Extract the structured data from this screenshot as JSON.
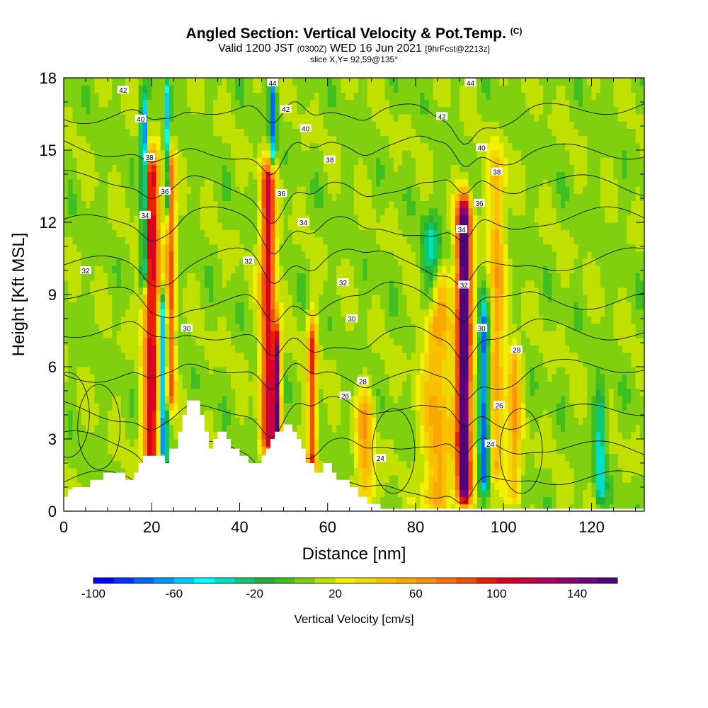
{
  "chart_data": {
    "type": "heatmap",
    "title": "Angled Section: Vertical Velocity & Pot.Temp.",
    "title_suffix": "(C)",
    "subtitle": {
      "part1": "Valid 1200 JST",
      "part2": "(0300Z)",
      "part3": "WED 16 Jun 2021",
      "part4": "[9hrFcst@2213z]"
    },
    "slice_label": "slice X,Y= 92,59@135°",
    "xlabel": "Distance [nm]",
    "ylabel": "Height [Kft MSL]",
    "xlim": [
      0,
      132
    ],
    "ylim": [
      0,
      18
    ],
    "x_ticks": [
      "0",
      "20",
      "40",
      "60",
      "80",
      "100",
      "120"
    ],
    "y_ticks": [
      "0",
      "3",
      "6",
      "9",
      "12",
      "15",
      "18"
    ],
    "colorbar": {
      "title": "Vertical Velocity [cm/s]",
      "min": -100,
      "max": 160,
      "step": 10,
      "labels": [
        "-100",
        "-60",
        "-20",
        "20",
        "60",
        "100",
        "140"
      ],
      "colors": [
        "#0000ff",
        "#0032ff",
        "#0064ff",
        "#0096ff",
        "#00ccff",
        "#00ffff",
        "#00e0c8",
        "#10c870",
        "#20b040",
        "#40c020",
        "#80d010",
        "#c0e000",
        "#f0f000",
        "#f0d800",
        "#f8c000",
        "#f8a800",
        "#f89010",
        "#f87010",
        "#f05000",
        "#e82000",
        "#d80020",
        "#c80040",
        "#b00060",
        "#900070",
        "#700080",
        "#500080"
      ]
    },
    "terrain": [
      [
        0,
        0.6
      ],
      [
        1,
        0.6
      ],
      [
        1,
        0.9
      ],
      [
        2,
        0.9
      ],
      [
        2,
        1.0
      ],
      [
        6,
        1.0
      ],
      [
        6,
        1.3
      ],
      [
        9,
        1.3
      ],
      [
        9,
        1.6
      ],
      [
        14,
        1.6
      ],
      [
        14,
        1.3
      ],
      [
        16,
        1.3
      ],
      [
        16,
        1.6
      ],
      [
        17,
        1.6
      ],
      [
        17,
        2.0
      ],
      [
        18,
        2.0
      ],
      [
        18,
        2.3
      ],
      [
        23,
        2.3
      ],
      [
        23,
        2.0
      ],
      [
        24,
        2.0
      ],
      [
        24,
        2.6
      ],
      [
        26,
        2.6
      ],
      [
        26,
        3.3
      ],
      [
        27,
        3.3
      ],
      [
        27,
        4.0
      ],
      [
        28,
        4.0
      ],
      [
        28,
        4.6
      ],
      [
        31,
        4.6
      ],
      [
        31,
        4.0
      ],
      [
        32,
        4.0
      ],
      [
        32,
        3.3
      ],
      [
        33,
        3.3
      ],
      [
        33,
        2.6
      ],
      [
        34,
        2.6
      ],
      [
        34,
        3.0
      ],
      [
        35,
        3.0
      ],
      [
        35,
        3.3
      ],
      [
        37,
        3.3
      ],
      [
        37,
        3.0
      ],
      [
        38,
        3.0
      ],
      [
        38,
        2.6
      ],
      [
        40,
        2.6
      ],
      [
        40,
        2.3
      ],
      [
        42,
        2.3
      ],
      [
        42,
        2.0
      ],
      [
        45,
        2.0
      ],
      [
        45,
        2.3
      ],
      [
        46,
        2.3
      ],
      [
        46,
        2.6
      ],
      [
        47,
        2.6
      ],
      [
        47,
        3.0
      ],
      [
        48,
        3.0
      ],
      [
        48,
        3.3
      ],
      [
        50,
        3.3
      ],
      [
        50,
        3.6
      ],
      [
        52,
        3.6
      ],
      [
        52,
        3.3
      ],
      [
        53,
        3.3
      ],
      [
        53,
        3.0
      ],
      [
        54,
        3.0
      ],
      [
        54,
        2.6
      ],
      [
        55,
        2.6
      ],
      [
        55,
        2.0
      ],
      [
        57,
        2.0
      ],
      [
        57,
        1.6
      ],
      [
        59,
        1.6
      ],
      [
        59,
        2.0
      ],
      [
        61,
        2.0
      ],
      [
        61,
        1.6
      ],
      [
        62,
        1.6
      ],
      [
        62,
        1.3
      ],
      [
        65,
        1.3
      ],
      [
        65,
        1.0
      ],
      [
        67,
        1.0
      ],
      [
        67,
        0.6
      ],
      [
        69,
        0.6
      ],
      [
        69,
        0.3
      ],
      [
        72,
        0.3
      ],
      [
        72,
        0.1
      ],
      [
        132,
        0.1
      ]
    ],
    "updrafts": [
      {
        "x": 20,
        "w": 1.9,
        "y0": 0,
        "y1": 13.8,
        "peak": 1.0
      },
      {
        "x": 24.3,
        "w": 1.0,
        "y0": 5,
        "y1": 14,
        "peak": 0.75
      },
      {
        "x": 46.5,
        "w": 1.7,
        "y0": 3,
        "y1": 13.5,
        "peak": 1.0
      },
      {
        "x": 48.5,
        "w": 0.8,
        "y0": 2.5,
        "y1": 6.5,
        "peak": 1.15
      },
      {
        "x": 56.5,
        "w": 1.0,
        "y0": 2,
        "y1": 7,
        "peak": 0.8
      },
      {
        "x": 91,
        "w": 1.6,
        "y0": 1,
        "y1": 12,
        "peak": 1.6
      },
      {
        "x": 85,
        "w": 3.5,
        "y0": 0.5,
        "y1": 9,
        "peak": 0.45
      },
      {
        "x": 98.5,
        "w": 1.8,
        "y0": 2,
        "y1": 14,
        "peak": 0.45
      },
      {
        "x": 102.5,
        "w": 1.5,
        "y0": 1,
        "y1": 6,
        "peak": 0.45
      },
      {
        "x": 68.5,
        "w": 2.0,
        "y0": 1,
        "y1": 4,
        "peak": 0.45
      }
    ],
    "downdrafts": [
      {
        "x": 18.2,
        "w": 0.7,
        "y0": 10,
        "y1": 16,
        "peak": -1.0
      },
      {
        "x": 22.5,
        "w": 1.0,
        "y0": 2,
        "y1": 8,
        "peak": -0.8
      },
      {
        "x": 23.5,
        "w": 0.7,
        "y0": 13,
        "y1": 17,
        "peak": -0.6
      },
      {
        "x": 47.5,
        "w": 0.7,
        "y0": 15,
        "y1": 18,
        "peak": -0.75
      },
      {
        "x": 95.5,
        "w": 1.0,
        "y0": 1.5,
        "y1": 7.5,
        "peak": -0.85
      },
      {
        "x": 83.5,
        "w": 2.0,
        "y0": 9,
        "y1": 11,
        "peak": -0.45
      },
      {
        "x": 122,
        "w": 1.2,
        "y0": 1,
        "y1": 4,
        "peak": -0.45
      }
    ],
    "isentropes": [
      "24",
      "26",
      "28",
      "30",
      "32",
      "34",
      "36",
      "38",
      "40",
      "42",
      "44"
    ],
    "contour_labels": [
      {
        "text": "42",
        "x": 13.5,
        "y": 17.5
      },
      {
        "text": "40",
        "x": 17.5,
        "y": 16.3
      },
      {
        "text": "38",
        "x": 19.5,
        "y": 14.7
      },
      {
        "text": "36",
        "x": 23,
        "y": 13.3
      },
      {
        "text": "34",
        "x": 18.5,
        "y": 12.3
      },
      {
        "text": "32",
        "x": 5,
        "y": 10
      },
      {
        "text": "30",
        "x": 28,
        "y": 7.6
      },
      {
        "text": "44",
        "x": 47.5,
        "y": 17.8
      },
      {
        "text": "42",
        "x": 50.5,
        "y": 16.7
      },
      {
        "text": "40",
        "x": 55,
        "y": 15.9
      },
      {
        "text": "38",
        "x": 60.5,
        "y": 14.6
      },
      {
        "text": "36",
        "x": 49.5,
        "y": 13.2
      },
      {
        "text": "34",
        "x": 54.5,
        "y": 12
      },
      {
        "text": "32",
        "x": 42,
        "y": 10.4
      },
      {
        "text": "32",
        "x": 63.5,
        "y": 9.5
      },
      {
        "text": "30",
        "x": 65.5,
        "y": 8
      },
      {
        "text": "28",
        "x": 68,
        "y": 5.4
      },
      {
        "text": "26",
        "x": 64,
        "y": 4.8
      },
      {
        "text": "24",
        "x": 72,
        "y": 2.2
      },
      {
        "text": "44",
        "x": 92.5,
        "y": 17.8
      },
      {
        "text": "42",
        "x": 86,
        "y": 16.4
      },
      {
        "text": "40",
        "x": 95,
        "y": 15.1
      },
      {
        "text": "38",
        "x": 98.5,
        "y": 14.1
      },
      {
        "text": "36",
        "x": 94.5,
        "y": 12.8
      },
      {
        "text": "34",
        "x": 90.5,
        "y": 11.7
      },
      {
        "text": "32",
        "x": 91,
        "y": 9.4
      },
      {
        "text": "30",
        "x": 95,
        "y": 7.6
      },
      {
        "text": "28",
        "x": 103,
        "y": 6.7
      },
      {
        "text": "26",
        "x": 99,
        "y": 4.4
      },
      {
        "text": "24",
        "x": 97,
        "y": 2.8
      }
    ],
    "grid": false,
    "legend": "bottom"
  }
}
